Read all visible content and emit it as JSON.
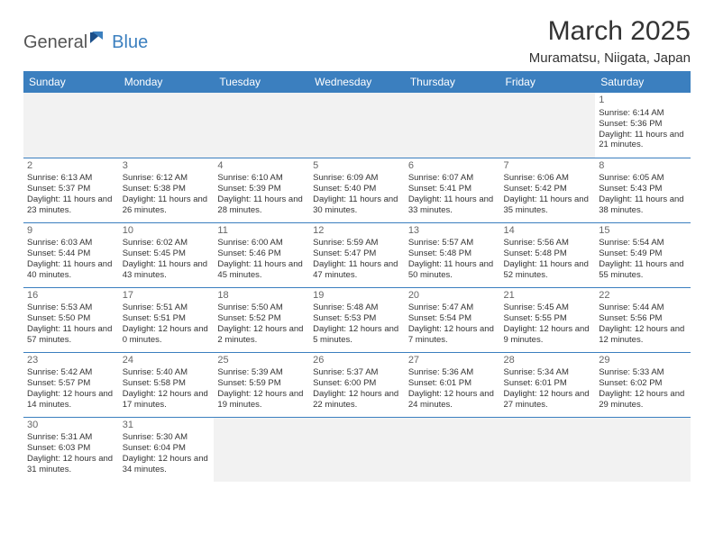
{
  "logo": {
    "text1": "General",
    "text2": "Blue"
  },
  "title": "March 2025",
  "location": "Muramatsu, Niigata, Japan",
  "colors": {
    "header_bg": "#3b7fbf",
    "header_text": "#ffffff",
    "row_border": "#3b7fbf",
    "empty_bg": "#f2f2f2",
    "text": "#333333",
    "daynum": "#666666"
  },
  "weekdays": [
    "Sunday",
    "Monday",
    "Tuesday",
    "Wednesday",
    "Thursday",
    "Friday",
    "Saturday"
  ],
  "weeks": [
    [
      null,
      null,
      null,
      null,
      null,
      null,
      {
        "d": "1",
        "sr": "6:14 AM",
        "ss": "5:36 PM",
        "dl": "11 hours and 21 minutes."
      }
    ],
    [
      {
        "d": "2",
        "sr": "6:13 AM",
        "ss": "5:37 PM",
        "dl": "11 hours and 23 minutes."
      },
      {
        "d": "3",
        "sr": "6:12 AM",
        "ss": "5:38 PM",
        "dl": "11 hours and 26 minutes."
      },
      {
        "d": "4",
        "sr": "6:10 AM",
        "ss": "5:39 PM",
        "dl": "11 hours and 28 minutes."
      },
      {
        "d": "5",
        "sr": "6:09 AM",
        "ss": "5:40 PM",
        "dl": "11 hours and 30 minutes."
      },
      {
        "d": "6",
        "sr": "6:07 AM",
        "ss": "5:41 PM",
        "dl": "11 hours and 33 minutes."
      },
      {
        "d": "7",
        "sr": "6:06 AM",
        "ss": "5:42 PM",
        "dl": "11 hours and 35 minutes."
      },
      {
        "d": "8",
        "sr": "6:05 AM",
        "ss": "5:43 PM",
        "dl": "11 hours and 38 minutes."
      }
    ],
    [
      {
        "d": "9",
        "sr": "6:03 AM",
        "ss": "5:44 PM",
        "dl": "11 hours and 40 minutes."
      },
      {
        "d": "10",
        "sr": "6:02 AM",
        "ss": "5:45 PM",
        "dl": "11 hours and 43 minutes."
      },
      {
        "d": "11",
        "sr": "6:00 AM",
        "ss": "5:46 PM",
        "dl": "11 hours and 45 minutes."
      },
      {
        "d": "12",
        "sr": "5:59 AM",
        "ss": "5:47 PM",
        "dl": "11 hours and 47 minutes."
      },
      {
        "d": "13",
        "sr": "5:57 AM",
        "ss": "5:48 PM",
        "dl": "11 hours and 50 minutes."
      },
      {
        "d": "14",
        "sr": "5:56 AM",
        "ss": "5:48 PM",
        "dl": "11 hours and 52 minutes."
      },
      {
        "d": "15",
        "sr": "5:54 AM",
        "ss": "5:49 PM",
        "dl": "11 hours and 55 minutes."
      }
    ],
    [
      {
        "d": "16",
        "sr": "5:53 AM",
        "ss": "5:50 PM",
        "dl": "11 hours and 57 minutes."
      },
      {
        "d": "17",
        "sr": "5:51 AM",
        "ss": "5:51 PM",
        "dl": "12 hours and 0 minutes."
      },
      {
        "d": "18",
        "sr": "5:50 AM",
        "ss": "5:52 PM",
        "dl": "12 hours and 2 minutes."
      },
      {
        "d": "19",
        "sr": "5:48 AM",
        "ss": "5:53 PM",
        "dl": "12 hours and 5 minutes."
      },
      {
        "d": "20",
        "sr": "5:47 AM",
        "ss": "5:54 PM",
        "dl": "12 hours and 7 minutes."
      },
      {
        "d": "21",
        "sr": "5:45 AM",
        "ss": "5:55 PM",
        "dl": "12 hours and 9 minutes."
      },
      {
        "d": "22",
        "sr": "5:44 AM",
        "ss": "5:56 PM",
        "dl": "12 hours and 12 minutes."
      }
    ],
    [
      {
        "d": "23",
        "sr": "5:42 AM",
        "ss": "5:57 PM",
        "dl": "12 hours and 14 minutes."
      },
      {
        "d": "24",
        "sr": "5:40 AM",
        "ss": "5:58 PM",
        "dl": "12 hours and 17 minutes."
      },
      {
        "d": "25",
        "sr": "5:39 AM",
        "ss": "5:59 PM",
        "dl": "12 hours and 19 minutes."
      },
      {
        "d": "26",
        "sr": "5:37 AM",
        "ss": "6:00 PM",
        "dl": "12 hours and 22 minutes."
      },
      {
        "d": "27",
        "sr": "5:36 AM",
        "ss": "6:01 PM",
        "dl": "12 hours and 24 minutes."
      },
      {
        "d": "28",
        "sr": "5:34 AM",
        "ss": "6:01 PM",
        "dl": "12 hours and 27 minutes."
      },
      {
        "d": "29",
        "sr": "5:33 AM",
        "ss": "6:02 PM",
        "dl": "12 hours and 29 minutes."
      }
    ],
    [
      {
        "d": "30",
        "sr": "5:31 AM",
        "ss": "6:03 PM",
        "dl": "12 hours and 31 minutes."
      },
      {
        "d": "31",
        "sr": "5:30 AM",
        "ss": "6:04 PM",
        "dl": "12 hours and 34 minutes."
      },
      null,
      null,
      null,
      null,
      null
    ]
  ]
}
